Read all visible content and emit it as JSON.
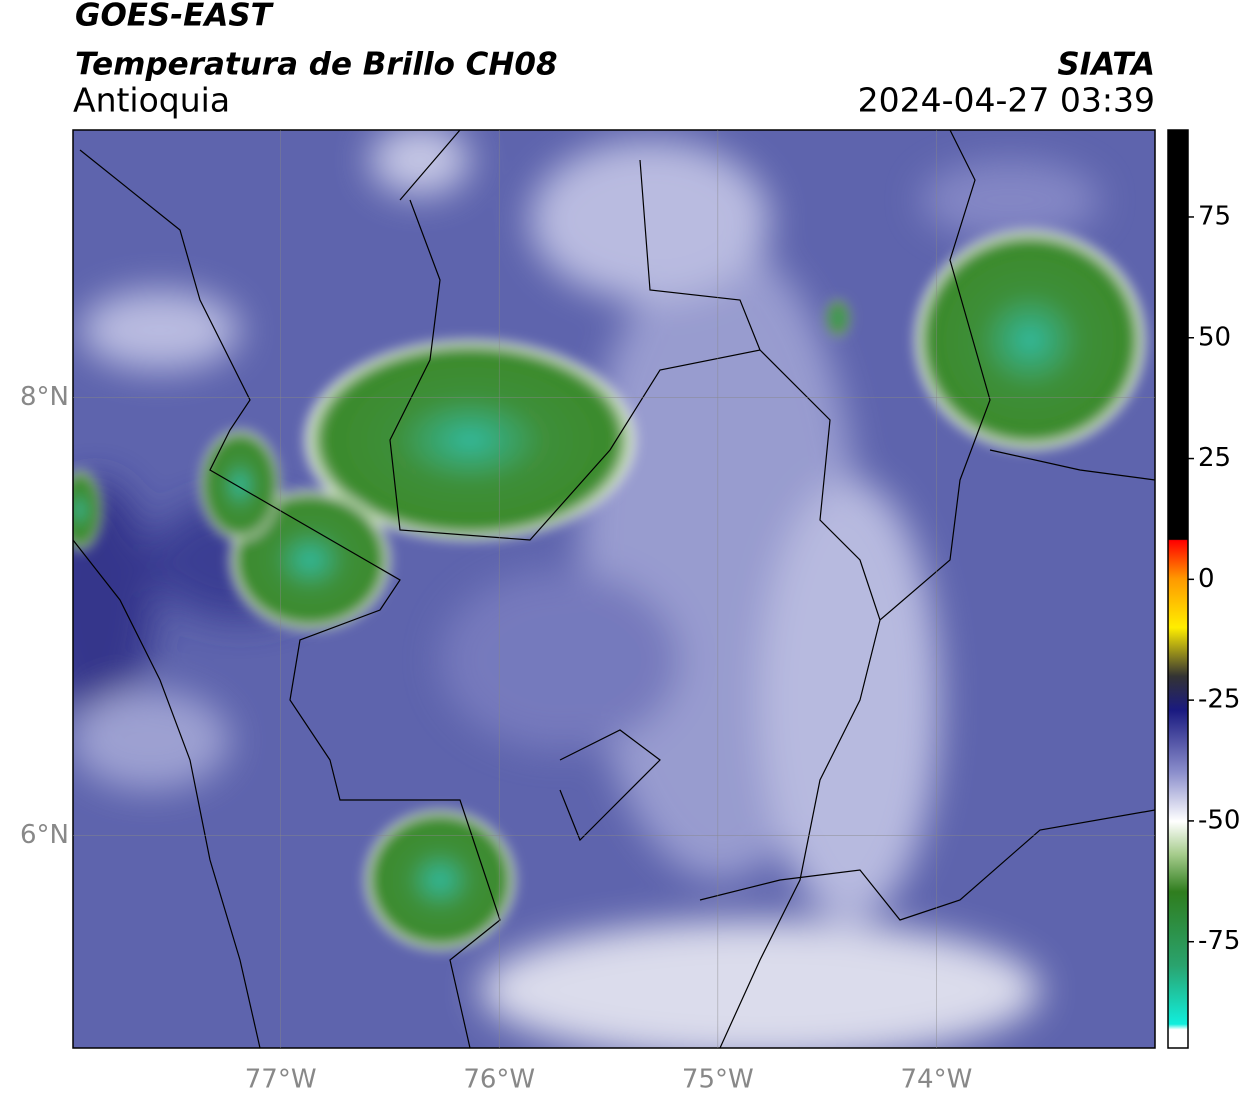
{
  "header": {
    "title": "GOES-EAST",
    "subtitle": "Temperatura de Brillo CH08",
    "region": "Antioquia",
    "source": "SIATA",
    "datetime": "2024-04-27 03:39"
  },
  "map": {
    "xlim": [
      -77.95,
      -73.0
    ],
    "ylim": [
      5.03,
      9.22
    ],
    "xticks": [
      {
        "value": -77,
        "label": "77°W"
      },
      {
        "value": -76,
        "label": "76°W"
      },
      {
        "value": -75,
        "label": "75°W"
      },
      {
        "value": -74,
        "label": "74°W"
      }
    ],
    "yticks": [
      {
        "value": 8,
        "label": "8°N"
      },
      {
        "value": 6,
        "label": "6°N"
      }
    ],
    "grid": true
  },
  "colorbar": {
    "lim": [
      -97,
      93
    ],
    "ticks": [
      75,
      50,
      25,
      0,
      -25,
      -50,
      -75
    ]
  }
}
